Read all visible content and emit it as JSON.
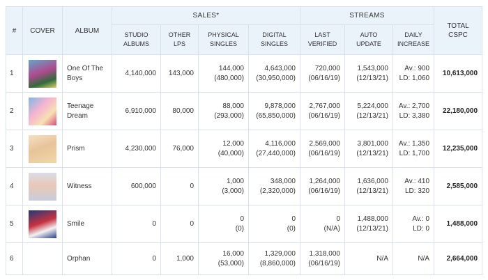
{
  "headers": {
    "num": "#",
    "cover": "COVER",
    "album": "ALBUM",
    "sales": "SALES*",
    "streams": "STREAMS",
    "total": "TOTAL CSPC",
    "studio_albums": "STUDIO ALBUMS",
    "other_lps": "OTHER LPS",
    "physical_singles": "PHYSICAL SINGLES",
    "digital_singles": "DIGITAL SINGLES",
    "last_verified": "LAST VERIFIED",
    "auto_update": "AUTO UPDATE",
    "daily_increase": "DAILY INCREASE"
  },
  "rows": [
    {
      "num": "1",
      "album": "One Of The Boys",
      "studio": "4,140,000",
      "other": "143,000",
      "phys": "144,000",
      "phys_sub": "(480,000)",
      "dig": "4,643,000",
      "dig_sub": "(30,950,000)",
      "last": "720,000",
      "last_sub": "(06/16/19)",
      "auto": "1,543,000",
      "auto_sub": "(12/13/21)",
      "daily": "Av.: 900",
      "daily_sub": "LD: 1,060",
      "total": "10,613,000"
    },
    {
      "num": "2",
      "album": "Teenage Dream",
      "studio": "6,910,000",
      "other": "80,000",
      "phys": "88,000",
      "phys_sub": "(293,000)",
      "dig": "9,878,000",
      "dig_sub": "(65,850,000)",
      "last": "2,767,000",
      "last_sub": "(06/16/19)",
      "auto": "5,224,000",
      "auto_sub": "(12/13/21)",
      "daily": "Av.: 2,700",
      "daily_sub": "LD: 3,380",
      "total": "22,180,000"
    },
    {
      "num": "3",
      "album": "Prism",
      "studio": "4,230,000",
      "other": "76,000",
      "phys": "12,000",
      "phys_sub": "(40,000)",
      "dig": "4,116,000",
      "dig_sub": "(27,440,000)",
      "last": "2,569,000",
      "last_sub": "(06/16/19)",
      "auto": "3,801,000",
      "auto_sub": "(12/13/21)",
      "daily": "Av.: 1,350",
      "daily_sub": "LD: 1,700",
      "total": "12,235,000"
    },
    {
      "num": "4",
      "album": "Witness",
      "studio": "600,000",
      "other": "0",
      "phys": "1,000",
      "phys_sub": "(3,000)",
      "dig": "348,000",
      "dig_sub": "(2,320,000)",
      "last": "1,264,000",
      "last_sub": "(06/16/19)",
      "auto": "1,636,000",
      "auto_sub": "(12/13/21)",
      "daily": "Av.: 410",
      "daily_sub": "LD: 320",
      "total": "2,585,000"
    },
    {
      "num": "5",
      "album": "Smile",
      "studio": "0",
      "other": "0",
      "phys": "0",
      "phys_sub": "(0)",
      "dig": "0",
      "dig_sub": "(0)",
      "last": "0",
      "last_sub": "(N/A)",
      "auto": "1,488,000",
      "auto_sub": "(12/13/21)",
      "daily": "Av.: 0",
      "daily_sub": "LD: 0",
      "total": "1,488,000"
    },
    {
      "num": "6",
      "album": "Orphan",
      "studio": "0",
      "other": "1,000",
      "phys": "16,000",
      "phys_sub": "(53,000)",
      "dig": "1,329,000",
      "dig_sub": "(8,860,000)",
      "last": "1,318,000",
      "last_sub": "(06/16/19)",
      "auto": "N/A",
      "auto_sub": "",
      "daily": "N/A",
      "daily_sub": "",
      "total": "2,664,000"
    }
  ]
}
